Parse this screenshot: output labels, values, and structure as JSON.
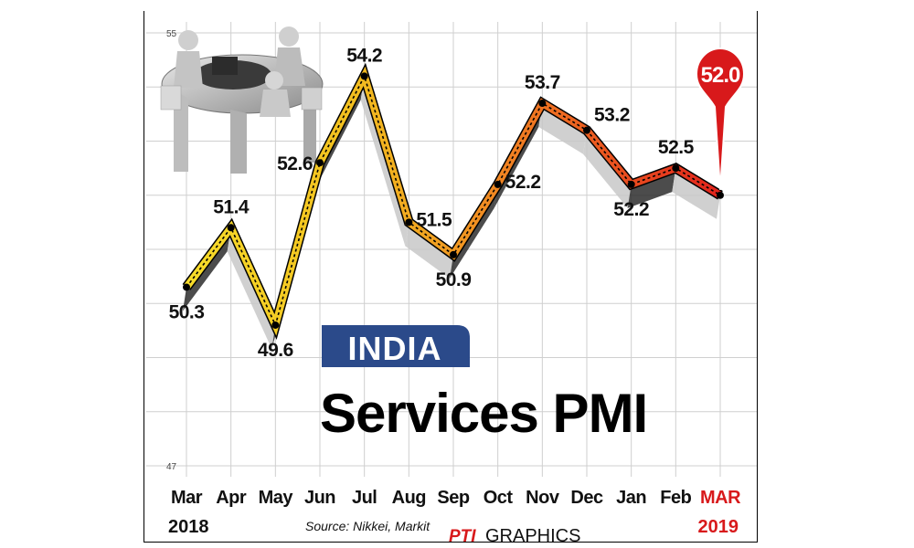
{
  "chart_data": {
    "type": "line",
    "title": "Services PMI",
    "tag": "INDIA",
    "ylim": [
      47,
      55
    ],
    "yticks": [
      "55",
      "47"
    ],
    "categories": [
      "Mar",
      "Apr",
      "May",
      "Jun",
      "Jul",
      "Aug",
      "Sep",
      "Oct",
      "Nov",
      "Dec",
      "Jan",
      "Feb",
      "MAR"
    ],
    "year_start": "2018",
    "year_end": "2019",
    "values": [
      50.3,
      51.4,
      49.6,
      52.6,
      54.2,
      51.5,
      50.9,
      52.2,
      53.7,
      53.2,
      52.2,
      52.5,
      52.0
    ],
    "labels": [
      "50.3",
      "51.4",
      "49.6",
      "52.6",
      "54.2",
      "51.5",
      "50.9",
      "52.2",
      "53.7",
      "53.2",
      "52.2",
      "52.5",
      "52.0"
    ],
    "grid": true,
    "colors": {
      "yellow": "#f4d31c",
      "orange": "#f08a20",
      "red": "#e03a1e",
      "highlight": "#d8191b",
      "india_box": "#2b4a8a"
    }
  },
  "footer": {
    "source": "Source: Nikkei, Markit",
    "brand_pti": "PTI",
    "brand_graphics": "GRAPHICS"
  },
  "decoration": {
    "icon": "meeting-table-figures-icon"
  }
}
